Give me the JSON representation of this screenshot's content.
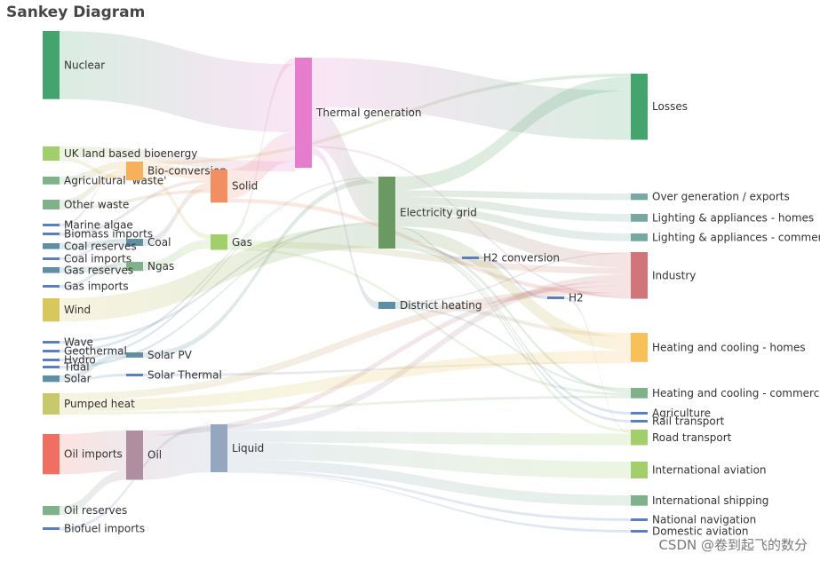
{
  "chart_data": {
    "type": "sankey",
    "title": "Sankey Diagram",
    "nodes": [
      {
        "name": "Agricultural 'waste'",
        "column": 0,
        "value": 12,
        "color": "#7fb28a"
      },
      {
        "name": "Bio-conversion",
        "column": 1,
        "value": 29,
        "color": "#f5b25a"
      },
      {
        "name": "Liquid",
        "column": 2,
        "value": 74,
        "color": "#95a7bf"
      },
      {
        "name": "Losses",
        "column": 4,
        "value": 102,
        "color": "#43a46e"
      },
      {
        "name": "Solid",
        "column": 2,
        "value": 51,
        "color": "#f28f62"
      },
      {
        "name": "Gas",
        "column": 2,
        "value": 24,
        "color": "#a2cf6c"
      },
      {
        "name": "Biofuel imports",
        "column": 0,
        "value": 5,
        "color": "#5b7ec2"
      },
      {
        "name": "Biomass imports",
        "column": 0,
        "value": 5,
        "color": "#5b7ec2"
      },
      {
        "name": "Coal imports",
        "column": 0,
        "value": 1,
        "color": "#5b7ec2"
      },
      {
        "name": "Coal",
        "column": 1,
        "value": 11,
        "color": "#5f8fa3"
      },
      {
        "name": "Coal reserves",
        "column": 0,
        "value": 9,
        "color": "#5f8fa3"
      },
      {
        "name": "District heating",
        "column": 3,
        "value": 11,
        "color": "#5f8fa3"
      },
      {
        "name": "Industry",
        "column": 4,
        "value": 72,
        "color": "#d0767a"
      },
      {
        "name": "Heating and cooling - commercial",
        "column": 4,
        "value": 16,
        "color": "#7fb28a"
      },
      {
        "name": "Heating and cooling - homes",
        "column": 4,
        "value": 45,
        "color": "#f8c058"
      },
      {
        "name": "Electricity grid",
        "column": 3,
        "value": 111,
        "color": "#6a9a62"
      },
      {
        "name": "Over generation / exports",
        "column": 4,
        "value": 10,
        "color": "#78a8a2"
      },
      {
        "name": "H2 conversion",
        "column": 3,
        "value": 2,
        "color": "#5b7ec2"
      },
      {
        "name": "Road transport",
        "column": 4,
        "value": 24,
        "color": "#a2cf6c"
      },
      {
        "name": "Agriculture",
        "column": 4,
        "value": 1,
        "color": "#5b7ec2"
      },
      {
        "name": "Rail transport",
        "column": 4,
        "value": 1,
        "color": "#5b7ec2"
      },
      {
        "name": "Lighting & appliances - commercial",
        "column": 4,
        "value": 12,
        "color": "#78a8a2"
      },
      {
        "name": "Lighting & appliances - homes",
        "column": 4,
        "value": 12,
        "color": "#78a8a2"
      },
      {
        "name": "Gas imports",
        "column": 0,
        "value": 5,
        "color": "#5b7ec2"
      },
      {
        "name": "Ngas",
        "column": 1,
        "value": 14,
        "color": "#7fb28a"
      },
      {
        "name": "Gas reserves",
        "column": 0,
        "value": 9,
        "color": "#5f8fa3"
      },
      {
        "name": "Thermal generation",
        "column": 3,
        "value": 170,
        "color": "#e57ccc"
      },
      {
        "name": "Geothermal",
        "column": 0,
        "value": 1,
        "color": "#5b7ec2"
      },
      {
        "name": "H2",
        "column": 4,
        "value": 2,
        "color": "#5b7ec2"
      },
      {
        "name": "Hydro",
        "column": 0,
        "value": 1,
        "color": "#5b7ec2"
      },
      {
        "name": "International shipping",
        "column": 4,
        "value": 16,
        "color": "#7fb28a"
      },
      {
        "name": "Domestic aviation",
        "column": 4,
        "value": 1,
        "color": "#5b7ec2"
      },
      {
        "name": "International aviation",
        "column": 4,
        "value": 26,
        "color": "#a2cf6c"
      },
      {
        "name": "National navigation",
        "column": 4,
        "value": 4,
        "color": "#5b7ec2"
      },
      {
        "name": "Marine algae",
        "column": 0,
        "value": 1,
        "color": "#5b7ec2"
      },
      {
        "name": "Nuclear",
        "column": 0,
        "value": 105,
        "color": "#43a46e"
      },
      {
        "name": "Oil imports",
        "column": 0,
        "value": 62,
        "color": "#ef7062"
      },
      {
        "name": "Oil",
        "column": 1,
        "value": 76,
        "color": "#b08e9f"
      },
      {
        "name": "Oil reserves",
        "column": 0,
        "value": 14,
        "color": "#7fb28a"
      },
      {
        "name": "Other waste",
        "column": 0,
        "value": 15,
        "color": "#7fb28a"
      },
      {
        "name": "Pumped heat",
        "column": 0,
        "value": 33,
        "color": "#c7c96a"
      },
      {
        "name": "Solar PV",
        "column": 1,
        "value": 8,
        "color": "#5f8fa3"
      },
      {
        "name": "Solar Thermal",
        "column": 1,
        "value": 2,
        "color": "#5b7ec2"
      },
      {
        "name": "Solar",
        "column": 0,
        "value": 10,
        "color": "#5f8fa3"
      },
      {
        "name": "Tidal",
        "column": 0,
        "value": 1,
        "color": "#5b7ec2"
      },
      {
        "name": "UK land based bioenergy",
        "column": 0,
        "value": 22,
        "color": "#a2cf6c"
      },
      {
        "name": "Wave",
        "column": 0,
        "value": 3,
        "color": "#5b7ec2"
      },
      {
        "name": "Wind",
        "column": 0,
        "value": 36,
        "color": "#d7c85e"
      }
    ],
    "links": [
      {
        "source": "Agricultural 'waste'",
        "target": "Bio-conversion",
        "value": 12
      },
      {
        "source": "Bio-conversion",
        "target": "Liquid",
        "value": 1
      },
      {
        "source": "Bio-conversion",
        "target": "Losses",
        "value": 5
      },
      {
        "source": "Bio-conversion",
        "target": "Solid",
        "value": 15
      },
      {
        "source": "Bio-conversion",
        "target": "Gas",
        "value": 8
      },
      {
        "source": "Biofuel imports",
        "target": "Liquid",
        "value": 5
      },
      {
        "source": "Biomass imports",
        "target": "Solid",
        "value": 5
      },
      {
        "source": "Coal imports",
        "target": "Coal",
        "value": 1
      },
      {
        "source": "Coal reserves",
        "target": "Coal",
        "value": 9
      },
      {
        "source": "Coal",
        "target": "Solid",
        "value": 11
      },
      {
        "source": "District heating",
        "target": "Industry",
        "value": 2
      },
      {
        "source": "District heating",
        "target": "Heating and cooling - commercial",
        "value": 3
      },
      {
        "source": "District heating",
        "target": "Heating and cooling - homes",
        "value": 6
      },
      {
        "source": "Electricity grid",
        "target": "Over generation / exports",
        "value": 10
      },
      {
        "source": "Electricity grid",
        "target": "Heating and cooling - homes",
        "value": 21
      },
      {
        "source": "Electricity grid",
        "target": "H2 conversion",
        "value": 2
      },
      {
        "source": "Electricity grid",
        "target": "Industry",
        "value": 22
      },
      {
        "source": "Electricity grid",
        "target": "Road transport",
        "value": 4
      },
      {
        "source": "Electricity grid",
        "target": "Agriculture",
        "value": 1
      },
      {
        "source": "Electricity grid",
        "target": "Rail transport",
        "value": 1
      },
      {
        "source": "Electricity grid",
        "target": "Lighting & appliances - commercial",
        "value": 12
      },
      {
        "source": "Electricity grid",
        "target": "Lighting & appliances - homes",
        "value": 12
      },
      {
        "source": "Electricity grid",
        "target": "Heating and cooling - commercial",
        "value": 5
      },
      {
        "source": "Electricity grid",
        "target": "Losses",
        "value": 21
      },
      {
        "source": "Gas imports",
        "target": "Ngas",
        "value": 5
      },
      {
        "source": "Gas reserves",
        "target": "Ngas",
        "value": 9
      },
      {
        "source": "Gas",
        "target": "Heating and cooling - commercial",
        "value": 4
      },
      {
        "source": "Gas",
        "target": "Industry",
        "value": 10
      },
      {
        "source": "Gas",
        "target": "Thermal generation",
        "value": 10
      },
      {
        "source": "Geothermal",
        "target": "Electricity grid",
        "value": 1
      },
      {
        "source": "H2 conversion",
        "target": "H2",
        "value": 2
      },
      {
        "source": "H2",
        "target": "Road transport",
        "value": 2
      },
      {
        "source": "Hydro",
        "target": "Electricity grid",
        "value": 1
      },
      {
        "source": "Liquid",
        "target": "Industry",
        "value": 10
      },
      {
        "source": "Liquid",
        "target": "International shipping",
        "value": 16
      },
      {
        "source": "Liquid",
        "target": "Road transport",
        "value": 18
      },
      {
        "source": "Liquid",
        "target": "Domestic aviation",
        "value": 1
      },
      {
        "source": "Liquid",
        "target": "International aviation",
        "value": 26
      },
      {
        "source": "Liquid",
        "target": "National navigation",
        "value": 4
      },
      {
        "source": "Marine algae",
        "target": "Bio-conversion",
        "value": 1
      },
      {
        "source": "Ngas",
        "target": "Gas",
        "value": 14
      },
      {
        "source": "Nuclear",
        "target": "Thermal generation",
        "value": 105
      },
      {
        "source": "Oil imports",
        "target": "Oil",
        "value": 62
      },
      {
        "source": "Oil reserves",
        "target": "Oil",
        "value": 14
      },
      {
        "source": "Oil",
        "target": "Liquid",
        "value": 68
      },
      {
        "source": "Oil",
        "target": "Industry",
        "value": 8
      },
      {
        "source": "Other waste",
        "target": "Solid",
        "value": 5
      },
      {
        "source": "Other waste",
        "target": "Bio-conversion",
        "value": 10
      },
      {
        "source": "Pumped heat",
        "target": "Heating and cooling - homes",
        "value": 18
      },
      {
        "source": "Pumped heat",
        "target": "Heating and cooling - commercial",
        "value": 4
      },
      {
        "source": "Pumped heat",
        "target": "Industry",
        "value": 11
      },
      {
        "source": "Solar PV",
        "target": "Electricity grid",
        "value": 8
      },
      {
        "source": "Solar Thermal",
        "target": "Heating and cooling - homes",
        "value": 2
      },
      {
        "source": "Solar",
        "target": "Solar Thermal",
        "value": 2
      },
      {
        "source": "Solar",
        "target": "Solar PV",
        "value": 8
      },
      {
        "source": "Solid",
        "target": "Thermal generation",
        "value": 45
      },
      {
        "source": "Solid",
        "target": "Industry",
        "value": 6
      },
      {
        "source": "Thermal generation",
        "target": "Electricity grid",
        "value": 60
      },
      {
        "source": "Thermal generation",
        "target": "Losses",
        "value": 76
      },
      {
        "source": "Thermal generation",
        "target": "District heating",
        "value": 11
      },
      {
        "source": "Thermal generation",
        "target": "Industry",
        "value": 3
      },
      {
        "source": "Tidal",
        "target": "Electricity grid",
        "value": 1
      },
      {
        "source": "UK land based bioenergy",
        "target": "Bio-conversion",
        "value": 6
      },
      {
        "source": "UK land based bioenergy",
        "target": "Thermal generation",
        "value": 16
      },
      {
        "source": "Wave",
        "target": "Electricity grid",
        "value": 3
      },
      {
        "source": "Wind",
        "target": "Electricity grid",
        "value": 36
      }
    ]
  },
  "watermark": "CSDN @卷到起飞的数分"
}
